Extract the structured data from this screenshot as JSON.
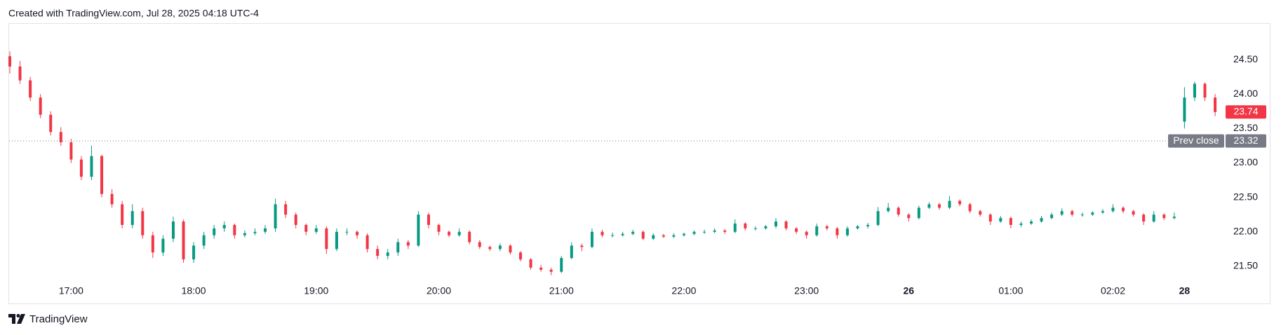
{
  "header": "Created with TradingView.com, Jul 28, 2025 04:18 UTC-4",
  "footer": "TradingView",
  "chart_data": {
    "type": "candlestick",
    "up_color": "#089981",
    "down_color": "#f23645",
    "grid": false,
    "ylim": [
      20.98,
      25.01
    ],
    "yticks": [
      {
        "value": 21.5,
        "label": "21.50"
      },
      {
        "value": 22,
        "label": "22.00"
      },
      {
        "value": 22.5,
        "label": "22.50"
      },
      {
        "value": 23,
        "label": "23.00"
      },
      {
        "value": 23.5,
        "label": "23.50"
      },
      {
        "value": 24,
        "label": "24.00"
      },
      {
        "value": 24.5,
        "label": "24.50"
      }
    ],
    "prev_close": {
      "label": "Prev close",
      "value": 23.32
    },
    "categories": [
      null,
      null,
      null,
      null,
      null,
      null,
      "17:00",
      null,
      null,
      null,
      null,
      null,
      null,
      null,
      null,
      null,
      null,
      null,
      "18:00",
      null,
      null,
      null,
      null,
      null,
      null,
      null,
      null,
      null,
      null,
      null,
      "19:00",
      null,
      null,
      null,
      null,
      null,
      null,
      null,
      null,
      null,
      null,
      null,
      "20:00",
      null,
      null,
      null,
      null,
      null,
      null,
      null,
      null,
      null,
      null,
      null,
      "21:00",
      null,
      null,
      null,
      null,
      null,
      null,
      null,
      null,
      null,
      null,
      null,
      "22:00",
      null,
      null,
      null,
      null,
      null,
      null,
      null,
      null,
      null,
      null,
      null,
      "23:00",
      null,
      null,
      null,
      null,
      null,
      null,
      null,
      null,
      null,
      "26",
      null,
      null,
      null,
      null,
      null,
      null,
      null,
      null,
      null,
      "01:00",
      null,
      null,
      null,
      null,
      null,
      null,
      null,
      null,
      null,
      "02:02",
      null,
      null,
      null,
      null,
      null,
      null,
      "28",
      null,
      null,
      null
    ],
    "ohlc": [
      [
        24.55,
        24.62,
        24.3,
        24.4
      ],
      [
        24.4,
        24.48,
        24.15,
        24.2
      ],
      [
        24.2,
        24.25,
        23.9,
        23.95
      ],
      [
        23.95,
        24.0,
        23.65,
        23.7
      ],
      [
        23.7,
        23.75,
        23.4,
        23.45
      ],
      [
        23.45,
        23.52,
        23.25,
        23.3
      ],
      [
        23.3,
        23.35,
        23.0,
        23.05
      ],
      [
        23.05,
        23.1,
        22.75,
        22.8
      ],
      [
        22.8,
        23.25,
        22.75,
        23.1
      ],
      [
        23.1,
        23.12,
        22.5,
        22.55
      ],
      [
        22.55,
        22.62,
        22.35,
        22.4
      ],
      [
        22.4,
        22.45,
        22.05,
        22.1
      ],
      [
        22.1,
        22.4,
        22.05,
        22.3
      ],
      [
        22.3,
        22.35,
        21.9,
        21.95
      ],
      [
        21.95,
        22.0,
        21.62,
        21.7
      ],
      [
        21.7,
        21.95,
        21.65,
        21.9
      ],
      [
        21.9,
        22.22,
        21.85,
        22.15
      ],
      [
        22.15,
        22.18,
        21.55,
        21.6
      ],
      [
        21.6,
        21.85,
        21.55,
        21.8
      ],
      [
        21.8,
        22.0,
        21.75,
        21.95
      ],
      [
        21.95,
        22.1,
        21.9,
        22.05
      ],
      [
        22.05,
        22.15,
        22.0,
        22.1
      ],
      [
        22.1,
        22.12,
        21.9,
        21.95
      ],
      [
        21.95,
        22.02,
        21.92,
        21.98
      ],
      [
        21.98,
        22.05,
        21.95,
        22.0
      ],
      [
        22.0,
        22.1,
        21.97,
        22.05
      ],
      [
        22.05,
        22.48,
        22.0,
        22.4
      ],
      [
        22.4,
        22.45,
        22.2,
        22.25
      ],
      [
        22.25,
        22.28,
        22.05,
        22.1
      ],
      [
        22.1,
        22.12,
        21.95,
        22.0
      ],
      [
        22.0,
        22.1,
        21.97,
        22.05
      ],
      [
        22.05,
        22.08,
        21.68,
        21.75
      ],
      [
        21.75,
        22.05,
        21.72,
        22.0
      ],
      [
        22.0,
        22.05,
        21.95,
        22.0
      ],
      [
        22.0,
        22.02,
        21.9,
        21.95
      ],
      [
        21.95,
        21.98,
        21.7,
        21.75
      ],
      [
        21.75,
        21.8,
        21.6,
        21.65
      ],
      [
        21.65,
        21.75,
        21.6,
        21.7
      ],
      [
        21.7,
        21.9,
        21.65,
        21.85
      ],
      [
        21.85,
        21.88,
        21.75,
        21.8
      ],
      [
        21.8,
        22.3,
        21.78,
        22.25
      ],
      [
        22.25,
        22.28,
        22.05,
        22.1
      ],
      [
        22.1,
        22.12,
        21.95,
        22.0
      ],
      [
        22.0,
        22.02,
        21.92,
        21.95
      ],
      [
        21.95,
        22.05,
        21.93,
        22.0
      ],
      [
        22.0,
        22.02,
        21.82,
        21.85
      ],
      [
        21.85,
        21.88,
        21.75,
        21.78
      ],
      [
        21.78,
        21.8,
        21.72,
        21.75
      ],
      [
        21.75,
        21.83,
        21.72,
        21.8
      ],
      [
        21.8,
        21.82,
        21.67,
        21.7
      ],
      [
        21.7,
        21.72,
        21.57,
        21.6
      ],
      [
        21.6,
        21.62,
        21.45,
        21.48
      ],
      [
        21.48,
        21.52,
        21.42,
        21.45
      ],
      [
        21.45,
        21.48,
        21.37,
        21.42
      ],
      [
        21.42,
        21.65,
        21.4,
        21.62
      ],
      [
        21.62,
        21.85,
        21.6,
        21.8
      ],
      [
        21.8,
        21.83,
        21.72,
        21.78
      ],
      [
        21.78,
        22.05,
        21.76,
        22.0
      ],
      [
        22.0,
        22.03,
        21.92,
        21.95
      ],
      [
        21.95,
        21.99,
        21.92,
        21.95
      ],
      [
        21.95,
        22.0,
        21.93,
        21.97
      ],
      [
        21.97,
        22.03,
        21.95,
        22.0
      ],
      [
        22.0,
        22.02,
        21.88,
        21.9
      ],
      [
        21.9,
        21.98,
        21.88,
        21.95
      ],
      [
        21.95,
        21.97,
        21.91,
        21.93
      ],
      [
        21.93,
        21.98,
        21.91,
        21.95
      ],
      [
        21.95,
        21.99,
        21.93,
        21.97
      ],
      [
        21.97,
        22.02,
        21.95,
        22.0
      ],
      [
        22.0,
        22.03,
        21.97,
        22.0
      ],
      [
        22.0,
        22.05,
        21.98,
        22.02
      ],
      [
        22.02,
        22.04,
        21.97,
        22.0
      ],
      [
        22.0,
        22.18,
        21.98,
        22.12
      ],
      [
        22.12,
        22.14,
        22.02,
        22.05
      ],
      [
        22.05,
        22.08,
        22.02,
        22.05
      ],
      [
        22.05,
        22.1,
        22.03,
        22.08
      ],
      [
        22.08,
        22.2,
        22.05,
        22.15
      ],
      [
        22.15,
        22.17,
        22.02,
        22.05
      ],
      [
        22.05,
        22.07,
        21.97,
        22.0
      ],
      [
        22.0,
        22.02,
        21.9,
        21.95
      ],
      [
        21.95,
        22.12,
        21.93,
        22.08
      ],
      [
        22.08,
        22.1,
        22.02,
        22.05
      ],
      [
        22.05,
        22.07,
        21.9,
        21.95
      ],
      [
        21.95,
        22.08,
        21.93,
        22.05
      ],
      [
        22.05,
        22.1,
        22.03,
        22.08
      ],
      [
        22.08,
        22.13,
        22.05,
        22.1
      ],
      [
        22.1,
        22.36,
        22.08,
        22.3
      ],
      [
        22.3,
        22.42,
        22.28,
        22.35
      ],
      [
        22.35,
        22.37,
        22.22,
        22.25
      ],
      [
        22.25,
        22.27,
        22.15,
        22.2
      ],
      [
        22.2,
        22.38,
        22.18,
        22.35
      ],
      [
        22.35,
        22.43,
        22.33,
        22.4
      ],
      [
        22.4,
        22.42,
        22.32,
        22.35
      ],
      [
        22.35,
        22.52,
        22.33,
        22.45
      ],
      [
        22.45,
        22.47,
        22.37,
        22.4
      ],
      [
        22.4,
        22.42,
        22.27,
        22.3
      ],
      [
        22.3,
        22.32,
        22.22,
        22.25
      ],
      [
        22.25,
        22.27,
        22.1,
        22.15
      ],
      [
        22.15,
        22.23,
        22.13,
        22.2
      ],
      [
        22.2,
        22.22,
        22.05,
        22.1
      ],
      [
        22.1,
        22.15,
        22.07,
        22.12
      ],
      [
        22.12,
        22.18,
        22.1,
        22.15
      ],
      [
        22.15,
        22.23,
        22.13,
        22.2
      ],
      [
        22.2,
        22.28,
        22.18,
        22.25
      ],
      [
        22.25,
        22.34,
        22.23,
        22.3
      ],
      [
        22.3,
        22.32,
        22.22,
        22.25
      ],
      [
        22.25,
        22.28,
        22.22,
        22.25
      ],
      [
        22.25,
        22.3,
        22.23,
        22.28
      ],
      [
        22.28,
        22.33,
        22.26,
        22.3
      ],
      [
        22.3,
        22.4,
        22.28,
        22.35
      ],
      [
        22.35,
        22.37,
        22.27,
        22.3
      ],
      [
        22.3,
        22.32,
        22.22,
        22.25
      ],
      [
        22.25,
        22.27,
        22.1,
        22.15
      ],
      [
        22.15,
        22.3,
        22.13,
        22.25
      ],
      [
        22.25,
        22.27,
        22.17,
        22.2
      ],
      [
        22.2,
        22.28,
        22.18,
        22.22
      ],
      [
        23.6,
        24.1,
        23.5,
        23.95
      ],
      [
        23.95,
        24.18,
        23.9,
        24.15
      ],
      [
        24.15,
        24.17,
        23.9,
        23.95
      ],
      [
        23.95,
        24.0,
        23.68,
        23.74
      ]
    ]
  }
}
